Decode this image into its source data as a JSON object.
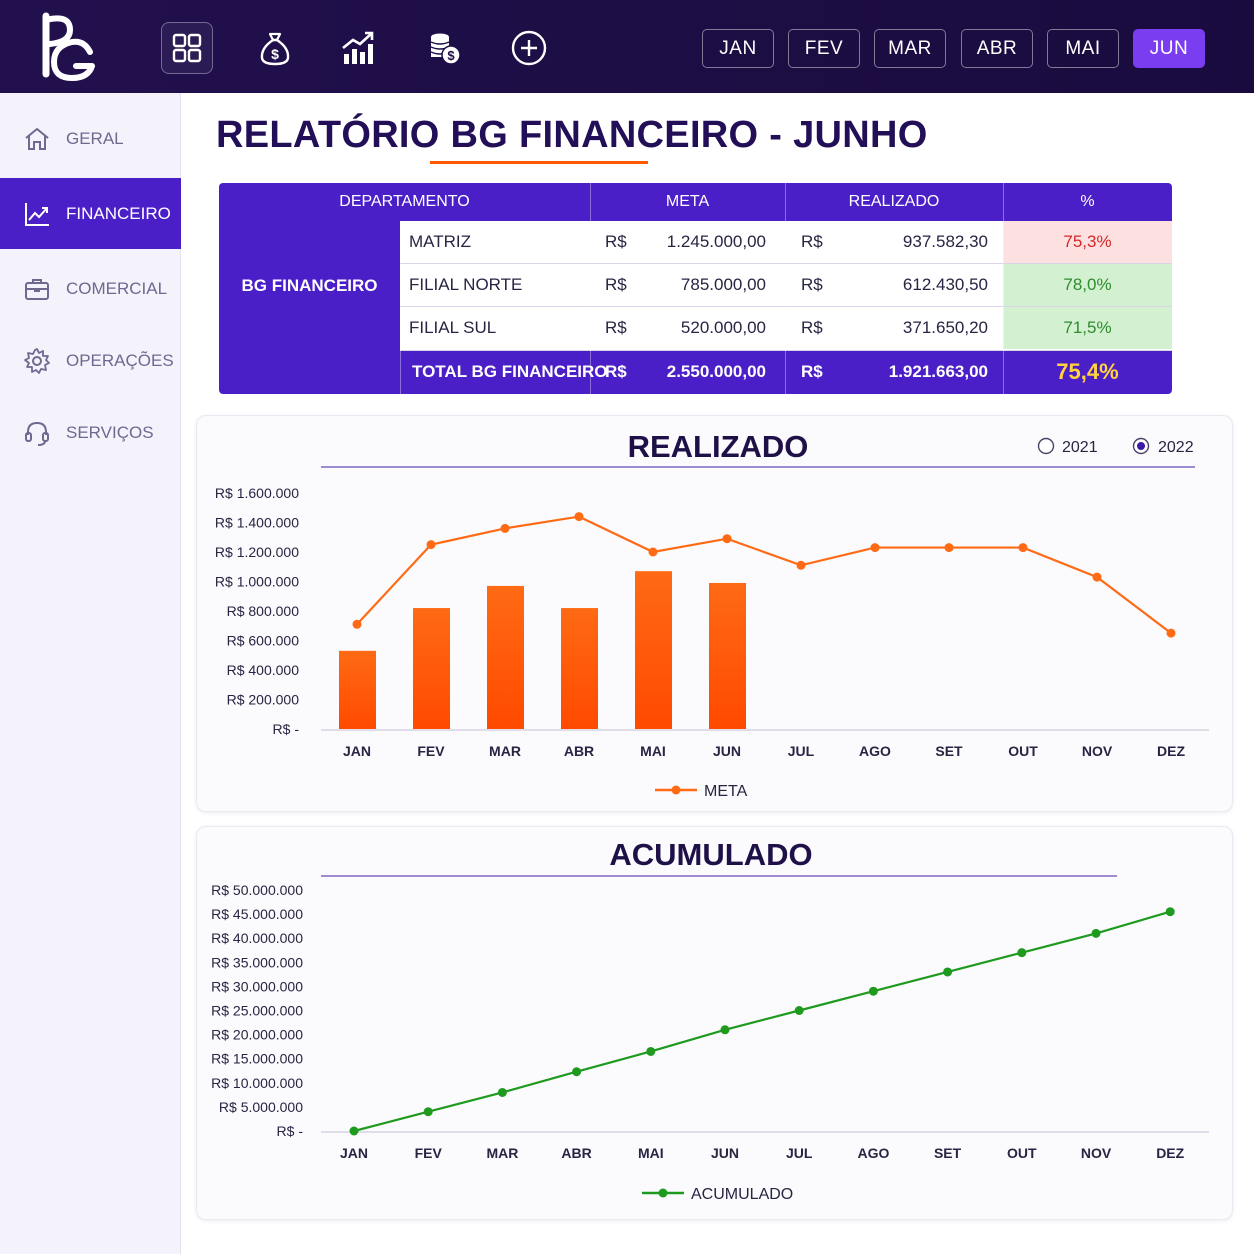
{
  "colors": {
    "topbar": "#1f0e48",
    "accent": "#4b1fc7",
    "active_month": "#7b3df0",
    "orange": "#ff5a00",
    "green": "#1e9a1e"
  },
  "toolbar": {
    "icons": [
      "grid-icon",
      "money-bag-icon",
      "bar-chart-growth-icon",
      "coins-icon",
      "plus-circle-icon"
    ]
  },
  "months": [
    "JAN",
    "FEV",
    "MAR",
    "ABR",
    "MAI",
    "JUN"
  ],
  "active_month": "JUN",
  "sidebar": {
    "items": [
      {
        "label": "GERAL",
        "icon": "home-icon"
      },
      {
        "label": "FINANCEIRO",
        "icon": "trend-chart-icon",
        "active": true
      },
      {
        "label": "COMERCIAL",
        "icon": "briefcase-icon"
      },
      {
        "label": "OPERAÇÕES",
        "icon": "gear-icon"
      },
      {
        "label": "SERVIÇOS",
        "icon": "headset-icon"
      }
    ]
  },
  "title": "RELATÓRIO BG FINANCEIRO - JUNHO",
  "table": {
    "headers": [
      "DEPARTAMENTO",
      "META",
      "REALIZADO",
      "%"
    ],
    "group": "BG FINANCEIRO",
    "currency": "R$",
    "rows": [
      {
        "name": "MATRIZ",
        "meta": "1.245.000,00",
        "realizado": "937.582,30",
        "pct": "75,3%",
        "status": "red"
      },
      {
        "name": "FILIAL NORTE",
        "meta": "785.000,00",
        "realizado": "612.430,50",
        "pct": "78,0%",
        "status": "green"
      },
      {
        "name": "FILIAL SUL",
        "meta": "520.000,00",
        "realizado": "371.650,20",
        "pct": "71,5%",
        "status": "green"
      }
    ],
    "total": {
      "name": "TOTAL BG FINANCEIRO",
      "meta": "2.550.000,00",
      "realizado": "1.921.663,00",
      "pct": "75,4%"
    }
  },
  "chart_data": [
    {
      "type": "bar",
      "title": "REALIZADO",
      "year_options": [
        {
          "label": "2021",
          "selected": false
        },
        {
          "label": "2022",
          "selected": true
        }
      ],
      "categories": [
        "JAN",
        "FEV",
        "MAR",
        "ABR",
        "MAI",
        "JUN",
        "JUL",
        "AGO",
        "SET",
        "OUT",
        "NOV",
        "DEZ"
      ],
      "bars": [
        530000,
        820000,
        970000,
        820000,
        1070000,
        990000,
        null,
        null,
        null,
        null,
        null,
        null
      ],
      "line": {
        "name": "META",
        "values": [
          710000,
          1250000,
          1360000,
          1440000,
          1200000,
          1290000,
          1110000,
          1230000,
          1230000,
          1230000,
          1030000,
          650000
        ]
      },
      "ylim": [
        0,
        1600000
      ],
      "yticks": [
        "R$ -",
        "R$ 200.000",
        "R$ 400.000",
        "R$ 600.000",
        "R$ 800.000",
        "R$ 1.000.000",
        "R$ 1.200.000",
        "R$ 1.400.000",
        "R$ 1.600.000"
      ],
      "legend": "bottom"
    },
    {
      "type": "line",
      "title": "ACUMULADO",
      "categories": [
        "JAN",
        "FEV",
        "MAR",
        "ABR",
        "MAI",
        "JUN",
        "JUL",
        "AGO",
        "SET",
        "OUT",
        "NOV",
        "DEZ"
      ],
      "series": [
        {
          "name": "ACUMULADO",
          "values": [
            0,
            4000000,
            8000000,
            12300000,
            16500000,
            21000000,
            25000000,
            29000000,
            33000000,
            37000000,
            41000000,
            45500000
          ]
        }
      ],
      "ylim": [
        0,
        50000000
      ],
      "yticks": [
        "R$ -",
        "R$ 5.000.000",
        "R$ 10.000.000",
        "R$ 15.000.000",
        "R$ 20.000.000",
        "R$ 25.000.000",
        "R$ 30.000.000",
        "R$ 35.000.000",
        "R$ 40.000.000",
        "R$ 45.000.000",
        "R$ 50.000.000"
      ],
      "legend": "bottom"
    }
  ]
}
